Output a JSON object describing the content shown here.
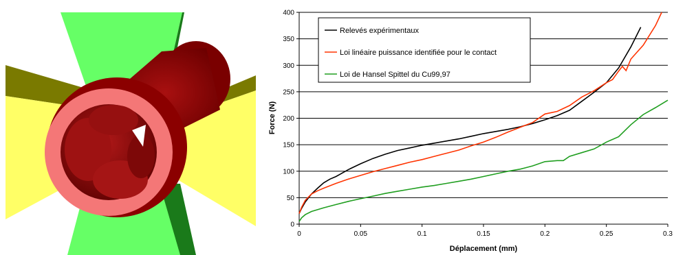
{
  "render_3d": {
    "colors": {
      "wedge_green": "#66ff66",
      "wedge_green_dark": "#1a7a1a",
      "wedge_yellow": "#ffff66",
      "wedge_olive": "#7a7a00",
      "tube_dark_red": "#8b0000",
      "ring_pink": "#f47777"
    }
  },
  "chart_data": {
    "type": "line",
    "xlabel": "Déplacement (mm)",
    "ylabel": "Force (N)",
    "xlim": [
      0,
      0.3
    ],
    "ylim": [
      0,
      400
    ],
    "xticks": [
      0,
      0.05,
      0.1,
      0.15,
      0.2,
      0.25,
      0.3
    ],
    "xtick_labels": [
      "0",
      "0.05",
      "0.1",
      "0.15",
      "0.2",
      "0.25",
      "0.3"
    ],
    "yticks": [
      0,
      50,
      100,
      150,
      200,
      250,
      300,
      350,
      400
    ],
    "ytick_labels": [
      "0",
      "50",
      "100",
      "150",
      "200",
      "250",
      "300",
      "350",
      "400"
    ],
    "grid": "horizontal",
    "legend_position": "top-left",
    "series": [
      {
        "name": "Relevés expérimentaux",
        "color": "#000000",
        "x": [
          0,
          0.002,
          0.005,
          0.01,
          0.015,
          0.02,
          0.025,
          0.03,
          0.04,
          0.05,
          0.06,
          0.07,
          0.08,
          0.09,
          0.1,
          0.11,
          0.12,
          0.13,
          0.14,
          0.15,
          0.16,
          0.17,
          0.18,
          0.19,
          0.2,
          0.21,
          0.22,
          0.23,
          0.24,
          0.25,
          0.26,
          0.27,
          0.278
        ],
        "y": [
          20,
          30,
          42,
          57,
          68,
          78,
          85,
          90,
          103,
          114,
          124,
          132,
          139,
          144,
          149,
          153,
          157,
          161,
          166,
          171,
          175,
          179,
          184,
          190,
          197,
          205,
          215,
          232,
          249,
          267,
          295,
          335,
          372
        ]
      },
      {
        "name": "Loi linéaire puissance identifiée pour le contact",
        "color": "#ff3300",
        "x": [
          0,
          0.002,
          0.005,
          0.01,
          0.015,
          0.02,
          0.03,
          0.04,
          0.05,
          0.06,
          0.07,
          0.08,
          0.09,
          0.1,
          0.11,
          0.12,
          0.13,
          0.14,
          0.15,
          0.16,
          0.17,
          0.18,
          0.19,
          0.2,
          0.21,
          0.22,
          0.23,
          0.24,
          0.25,
          0.255,
          0.26,
          0.263,
          0.266,
          0.27,
          0.28,
          0.29,
          0.295
        ],
        "y": [
          20,
          32,
          45,
          57,
          63,
          68,
          77,
          85,
          92,
          99,
          105,
          111,
          117,
          122,
          128,
          134,
          140,
          148,
          155,
          164,
          174,
          183,
          192,
          208,
          213,
          224,
          240,
          252,
          267,
          273,
          289,
          298,
          290,
          312,
          338,
          375,
          400
        ]
      },
      {
        "name": "Loi de Hansel Spittel du Cu99,97",
        "color": "#1f9e1f",
        "x": [
          0,
          0.002,
          0.005,
          0.01,
          0.02,
          0.03,
          0.04,
          0.05,
          0.06,
          0.07,
          0.08,
          0.09,
          0.1,
          0.11,
          0.12,
          0.13,
          0.14,
          0.15,
          0.16,
          0.17,
          0.18,
          0.19,
          0.2,
          0.21,
          0.215,
          0.22,
          0.23,
          0.24,
          0.25,
          0.26,
          0.27,
          0.28,
          0.29,
          0.3
        ],
        "y": [
          5,
          12,
          18,
          24,
          31,
          37,
          43,
          48,
          53,
          58,
          62,
          66,
          70,
          73,
          77,
          81,
          85,
          90,
          95,
          100,
          104,
          110,
          118,
          120,
          120,
          128,
          135,
          142,
          155,
          165,
          188,
          207,
          220,
          234
        ]
      }
    ]
  }
}
